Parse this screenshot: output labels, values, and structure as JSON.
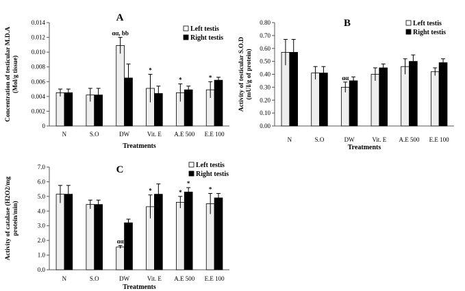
{
  "chart_data": [
    {
      "type": "bar",
      "panel": "A",
      "categories": [
        "N",
        "S.O",
        "DW",
        "Vit. E",
        "A.E 500",
        "E.E 100"
      ],
      "series": [
        {
          "name": "Left testis",
          "values": [
            0.0045,
            0.0042,
            0.0109,
            0.0051,
            0.0045,
            0.0049
          ],
          "errors": [
            0.0005,
            0.0009,
            0.0011,
            0.0019,
            0.0012,
            0.0011
          ]
        },
        {
          "name": "Right testis",
          "values": [
            0.0045,
            0.0042,
            0.0065,
            0.0044,
            0.0049,
            0.0062
          ],
          "errors": [
            0.0005,
            0.0009,
            0.0019,
            0.001,
            0.0005,
            0.0004
          ]
        }
      ],
      "annotations": [
        {
          "category": 2,
          "series": 0,
          "text": "αα, bb"
        },
        {
          "category": 3,
          "series": 0,
          "text": "*"
        },
        {
          "category": 4,
          "series": 0,
          "text": "*"
        },
        {
          "category": 5,
          "series": 0,
          "text": "*"
        }
      ],
      "xlabel": "Treatments",
      "ylabel_lines": [
        "Concentration of testicular M.D.A",
        "(Mol/g tissue)"
      ],
      "ylim": [
        0,
        0.014
      ],
      "yticks": [
        0,
        0.002,
        0.004,
        0.006,
        0.008,
        0.01,
        0.012,
        0.014
      ],
      "ytick_labels": [
        "0",
        "0.002",
        "0.004",
        "0.006",
        "0.008",
        "0.010",
        "0.012",
        "0.014"
      ],
      "legend_position": "top-right",
      "grid": false
    },
    {
      "type": "bar",
      "panel": "B",
      "categories": [
        "N",
        "S.O",
        "DW",
        "Vit. E",
        "A.E 500",
        "E.E 100"
      ],
      "series": [
        {
          "name": "Left testis",
          "values": [
            0.57,
            0.41,
            0.3,
            0.4,
            0.46,
            0.42
          ],
          "errors": [
            0.1,
            0.05,
            0.04,
            0.05,
            0.06,
            0.03
          ]
        },
        {
          "name": "Right testis",
          "values": [
            0.57,
            0.41,
            0.35,
            0.45,
            0.5,
            0.49
          ],
          "errors": [
            0.1,
            0.05,
            0.03,
            0.03,
            0.05,
            0.03
          ]
        }
      ],
      "annotations": [
        {
          "category": 2,
          "series": 0,
          "text": "αα"
        }
      ],
      "xlabel": "Treatments",
      "ylabel_lines": [
        "Activity of testicular S.O.D",
        "(mUI/g of protein)"
      ],
      "ylim": [
        0,
        0.8
      ],
      "yticks": [
        0,
        0.1,
        0.2,
        0.3,
        0.4,
        0.5,
        0.6,
        0.7,
        0.8
      ],
      "ytick_labels": [
        "0.00",
        "0.10",
        "0.20",
        "0.30",
        "0.40",
        "0.50",
        "0.60",
        "0.70",
        "0.80"
      ],
      "legend_position": "top-right",
      "grid": false
    },
    {
      "type": "bar",
      "panel": "C",
      "categories": [
        "N",
        "S.O",
        "DW",
        "Vit. E",
        "A.E 500",
        "E.E 100"
      ],
      "series": [
        {
          "name": "Left testis",
          "values": [
            5.15,
            4.45,
            1.55,
            4.3,
            4.6,
            4.5
          ],
          "errors": [
            0.6,
            0.3,
            0.1,
            0.8,
            0.4,
            0.7
          ]
        },
        {
          "name": "Right testis",
          "values": [
            5.15,
            4.45,
            3.2,
            5.15,
            5.3,
            4.9
          ],
          "errors": [
            0.6,
            0.3,
            0.25,
            0.7,
            0.3,
            0.3
          ]
        }
      ],
      "annotations": [
        {
          "category": 2,
          "series": 0,
          "text": "αα"
        },
        {
          "category": 3,
          "series": 0,
          "text": "*"
        },
        {
          "category": 4,
          "series": 0,
          "text": "*"
        },
        {
          "category": 4,
          "series": 1,
          "text": "*"
        },
        {
          "category": 5,
          "series": 0,
          "text": "*"
        }
      ],
      "xlabel": "Treatments",
      "ylabel_lines": [
        "Activity of catalase (H2O2/mg",
        "protein/min)"
      ],
      "ylim": [
        0,
        7.0
      ],
      "yticks": [
        0,
        1,
        2,
        3,
        4,
        5,
        6,
        7
      ],
      "ytick_labels": [
        "0.0",
        "1.0",
        "2.0",
        "3.0",
        "4.0",
        "5.0",
        "6.0",
        "7.0"
      ],
      "legend_position": "top-right",
      "grid": false
    }
  ],
  "colors": {
    "left_fill": "#eeeeee",
    "right_fill": "#000000",
    "axis": "#555555"
  }
}
